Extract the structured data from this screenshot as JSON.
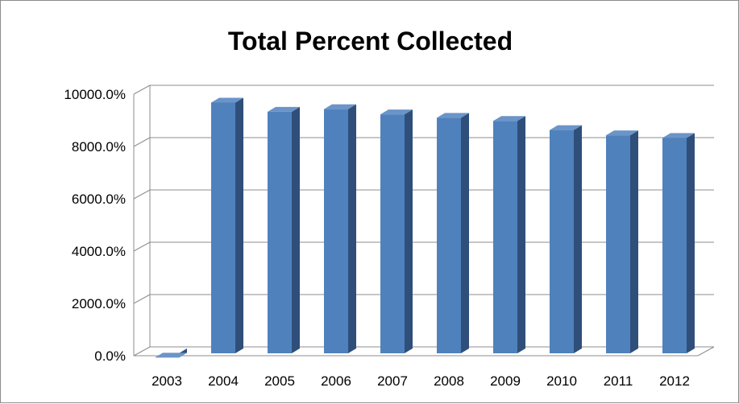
{
  "chart_data": {
    "type": "bar",
    "title": "Total Percent Collected",
    "categories": [
      "2003",
      "2004",
      "2005",
      "2006",
      "2007",
      "2008",
      "2009",
      "2010",
      "2011",
      "2012"
    ],
    "values": [
      50,
      9800,
      9450,
      9550,
      9350,
      9220,
      9100,
      8750,
      8550,
      8450
    ],
    "ylim": [
      0,
      10000
    ],
    "yticks": [
      0,
      2000,
      4000,
      6000,
      8000,
      10000
    ],
    "ytick_labels": [
      "0.0%",
      "2000.0%",
      "4000.0%",
      "6000.0%",
      "8000.0%",
      "10000.0%"
    ],
    "grid": true,
    "legend": "none",
    "colors": {
      "bar_front": "#4f81bd",
      "bar_side": "#2f4f7a",
      "bar_top": "#6b94c8",
      "grid": "#8c8c8c",
      "wall": "#ffffff"
    }
  }
}
